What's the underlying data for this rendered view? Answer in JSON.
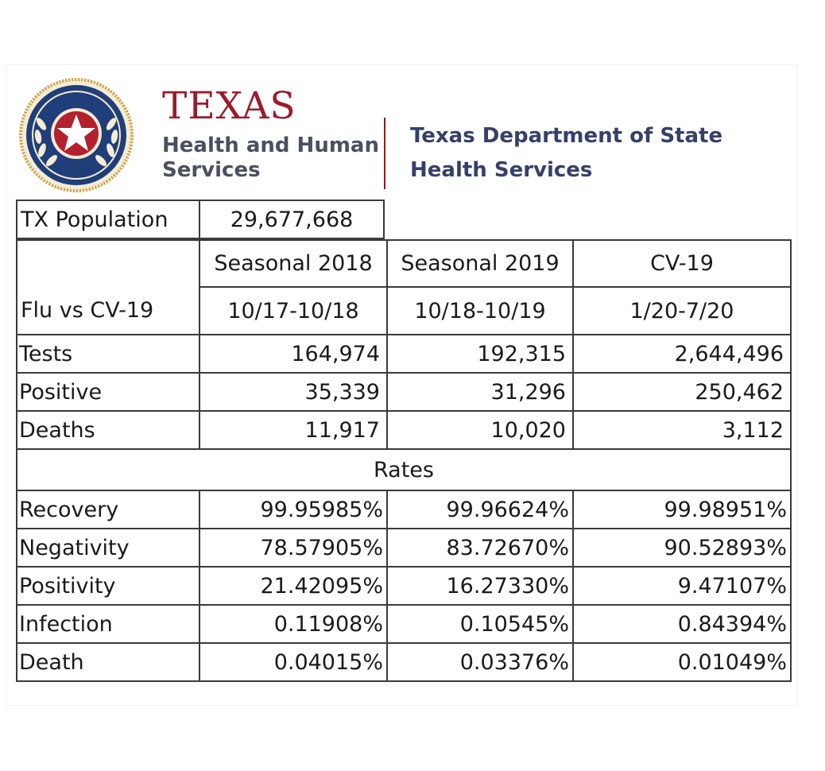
{
  "header": {
    "org_title": "TEXAS",
    "org_subtitle_line1": "Health and Human",
    "org_subtitle_line2": "Services",
    "dept_line1": "Texas Department of State",
    "dept_line2": "Health Services",
    "seal_icon": "texas-star-seal-icon",
    "colors": {
      "org_title": "#9b1b2a",
      "org_subtitle": "#4a5060",
      "dept": "#35406a",
      "seal_blue": "#1f3e7a",
      "seal_red": "#b3202e",
      "seal_gold": "#c9a24a"
    }
  },
  "population": {
    "label": "TX Population",
    "value": "29,677,668"
  },
  "table": {
    "corner_label": "Flu vs CV-19",
    "columns": [
      {
        "name": "Seasonal 2018",
        "period": "10/17-10/18"
      },
      {
        "name": "Seasonal 2019",
        "period": "10/18-10/19"
      },
      {
        "name": "CV-19",
        "period": "1/20-7/20"
      }
    ],
    "rows": [
      {
        "label": "Tests",
        "values": [
          "164,974",
          "192,315",
          "2,644,496"
        ]
      },
      {
        "label": "Positive",
        "values": [
          "35,339",
          "31,296",
          "250,462"
        ]
      },
      {
        "label": "Deaths",
        "values": [
          "11,917",
          "10,020",
          "3,112"
        ]
      }
    ],
    "rates_title": "Rates",
    "rates": [
      {
        "label": "Recovery",
        "values": [
          "99.95985%",
          "99.96624%",
          "99.98951%"
        ]
      },
      {
        "label": "Negativity",
        "values": [
          "78.57905%",
          "83.72670%",
          "90.52893%"
        ]
      },
      {
        "label": "Positivity",
        "values": [
          "21.42095%",
          "16.27330%",
          "9.47107%"
        ]
      },
      {
        "label": "Infection",
        "values": [
          "0.11908%",
          "0.10545%",
          "0.84394%"
        ]
      },
      {
        "label": "Death",
        "values": [
          "0.04015%",
          "0.03376%",
          "0.01049%"
        ]
      }
    ]
  }
}
